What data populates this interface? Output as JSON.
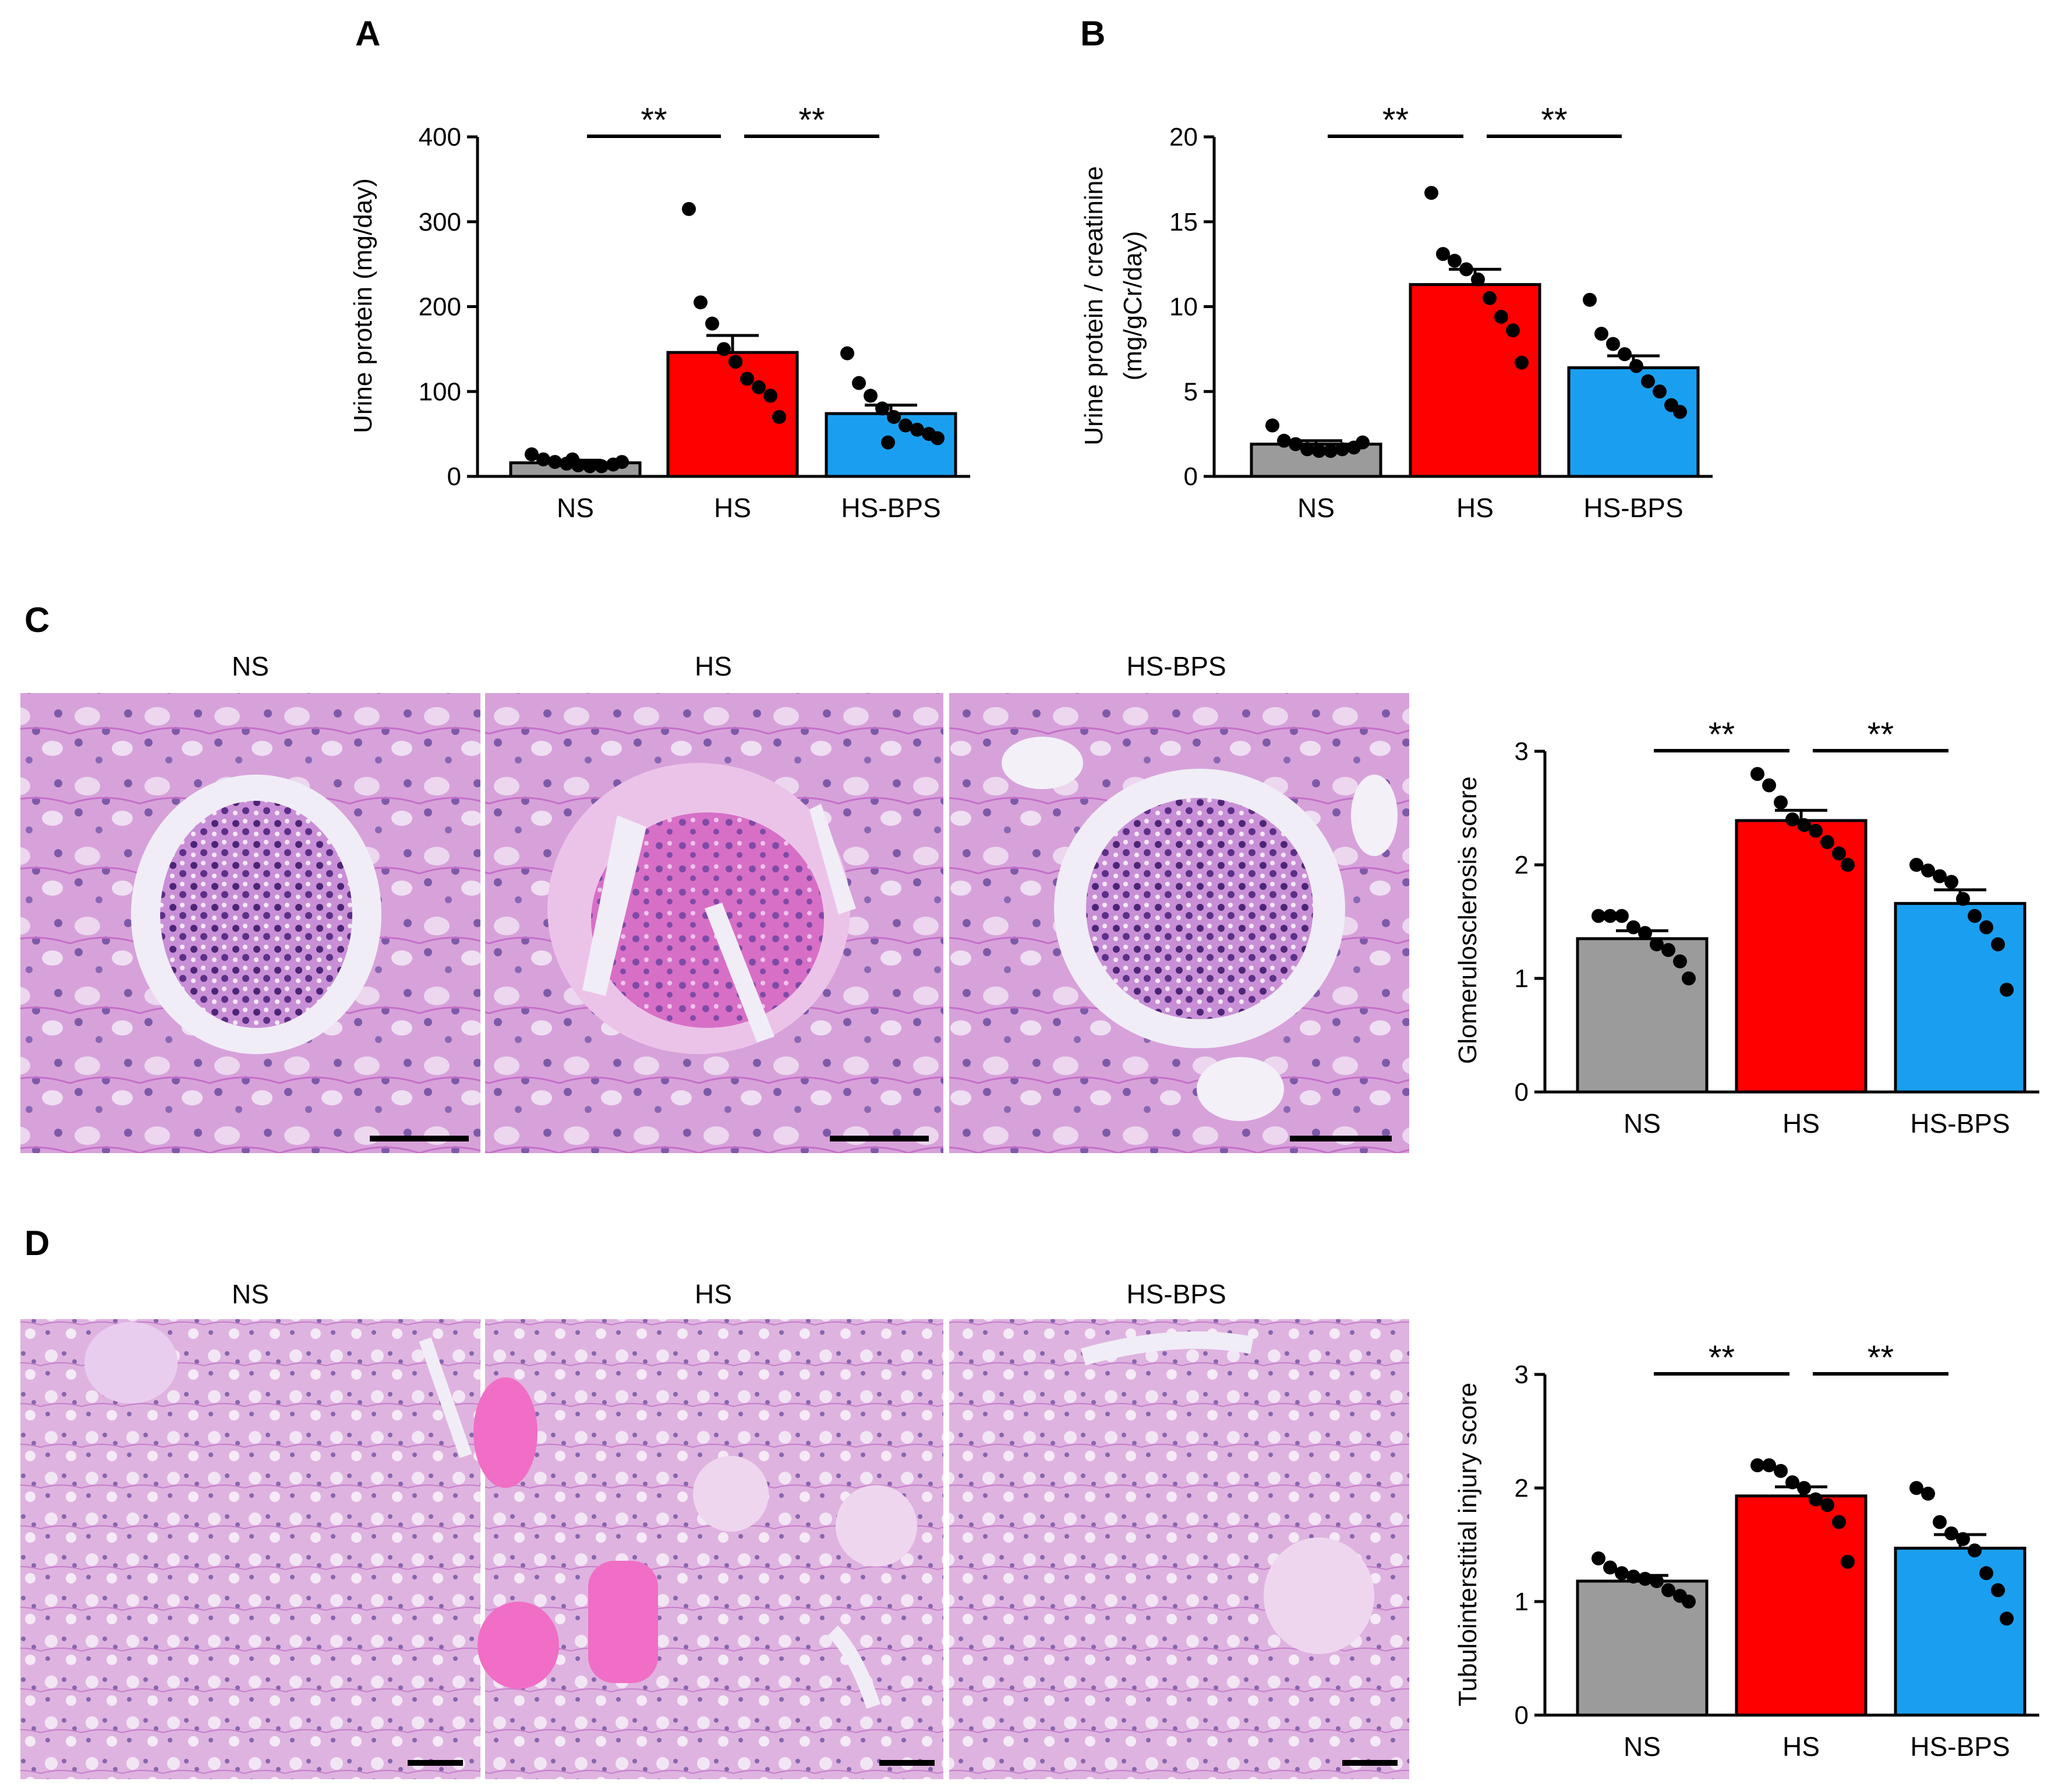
{
  "panels": {
    "A": "A",
    "B": "B",
    "C": "C",
    "D": "D"
  },
  "colors": {
    "NS": "#9b9b9b",
    "HS": "#ff0000",
    "HS-BPS": "#1a9ff0",
    "tissue_base": "#d9a7dc",
    "tissue_pink": "#e060b8",
    "nucleus": "#5a2f8a",
    "lumen": "#f1edf7"
  },
  "micrographs": {
    "C": {
      "labels": [
        "NS",
        "HS",
        "HS-BPS"
      ]
    },
    "D": {
      "labels": [
        "NS",
        "HS",
        "HS-BPS"
      ]
    }
  },
  "chart_data": [
    {
      "panel": "A",
      "type": "bar",
      "categories": [
        "NS",
        "HS",
        "HS-BPS"
      ],
      "values": [
        16,
        146,
        74
      ],
      "sem": [
        3,
        20,
        10
      ],
      "points": [
        [
          26,
          20,
          17,
          15,
          13,
          12,
          12,
          14,
          17,
          20
        ],
        [
          315,
          205,
          180,
          150,
          135,
          115,
          105,
          95,
          70
        ],
        [
          145,
          110,
          95,
          80,
          70,
          60,
          55,
          50,
          45,
          40
        ]
      ],
      "ylabel": "Urine protein (mg/day)",
      "ylim": [
        0,
        400
      ],
      "yticks": [
        0,
        100,
        200,
        300,
        400
      ],
      "significance": [
        {
          "from": 0,
          "to": 1,
          "label": "**"
        },
        {
          "from": 1,
          "to": 2,
          "label": "**"
        }
      ]
    },
    {
      "panel": "B",
      "type": "bar",
      "categories": [
        "NS",
        "HS",
        "HS-BPS"
      ],
      "values": [
        1.9,
        11.3,
        6.4
      ],
      "sem": [
        0.2,
        0.9,
        0.7
      ],
      "points": [
        [
          3.0,
          2.1,
          1.9,
          1.6,
          1.5,
          1.5,
          1.6,
          1.7,
          2.0
        ],
        [
          16.7,
          13.1,
          12.7,
          12.2,
          11.6,
          10.5,
          9.4,
          8.6,
          6.7
        ],
        [
          10.4,
          8.4,
          7.8,
          7.2,
          6.5,
          5.6,
          5.0,
          4.2,
          3.8
        ]
      ],
      "ylabel": "Urine protein / creatinine",
      "ylabel2": "(mg/gCr/day)",
      "ylim": [
        0,
        20
      ],
      "yticks": [
        0,
        5,
        10,
        15,
        20
      ],
      "significance": [
        {
          "from": 0,
          "to": 1,
          "label": "**"
        },
        {
          "from": 1,
          "to": 2,
          "label": "**"
        }
      ]
    },
    {
      "panel": "C",
      "type": "bar",
      "categories": [
        "NS",
        "HS",
        "HS-BPS"
      ],
      "values": [
        1.35,
        2.39,
        1.66
      ],
      "sem": [
        0.07,
        0.09,
        0.12
      ],
      "points": [
        [
          1.55,
          1.55,
          1.55,
          1.45,
          1.4,
          1.3,
          1.25,
          1.15,
          1.0
        ],
        [
          2.8,
          2.7,
          2.55,
          2.4,
          2.35,
          2.3,
          2.2,
          2.1,
          2.0
        ],
        [
          2.0,
          1.95,
          1.9,
          1.85,
          1.7,
          1.55,
          1.45,
          1.3,
          0.9
        ]
      ],
      "ylabel": "Glomerulosclerosis score",
      "ylim": [
        0,
        3
      ],
      "yticks": [
        0,
        1,
        2,
        3
      ],
      "significance": [
        {
          "from": 0,
          "to": 1,
          "label": "**"
        },
        {
          "from": 1,
          "to": 2,
          "label": "**"
        }
      ]
    },
    {
      "panel": "D",
      "type": "bar",
      "categories": [
        "NS",
        "HS",
        "HS-BPS"
      ],
      "values": [
        1.18,
        1.93,
        1.47
      ],
      "sem": [
        0.05,
        0.08,
        0.12
      ],
      "points": [
        [
          1.38,
          1.3,
          1.25,
          1.22,
          1.2,
          1.18,
          1.1,
          1.05,
          1.0
        ],
        [
          2.2,
          2.2,
          2.15,
          2.05,
          2.0,
          1.9,
          1.85,
          1.7,
          1.35
        ],
        [
          2.0,
          1.95,
          1.7,
          1.6,
          1.55,
          1.45,
          1.25,
          1.1,
          0.85
        ]
      ],
      "ylabel": "Tubulointerstitial injury score",
      "ylim": [
        0,
        3
      ],
      "yticks": [
        0,
        1,
        2,
        3
      ],
      "significance": [
        {
          "from": 0,
          "to": 1,
          "label": "**"
        },
        {
          "from": 1,
          "to": 2,
          "label": "**"
        }
      ]
    }
  ]
}
